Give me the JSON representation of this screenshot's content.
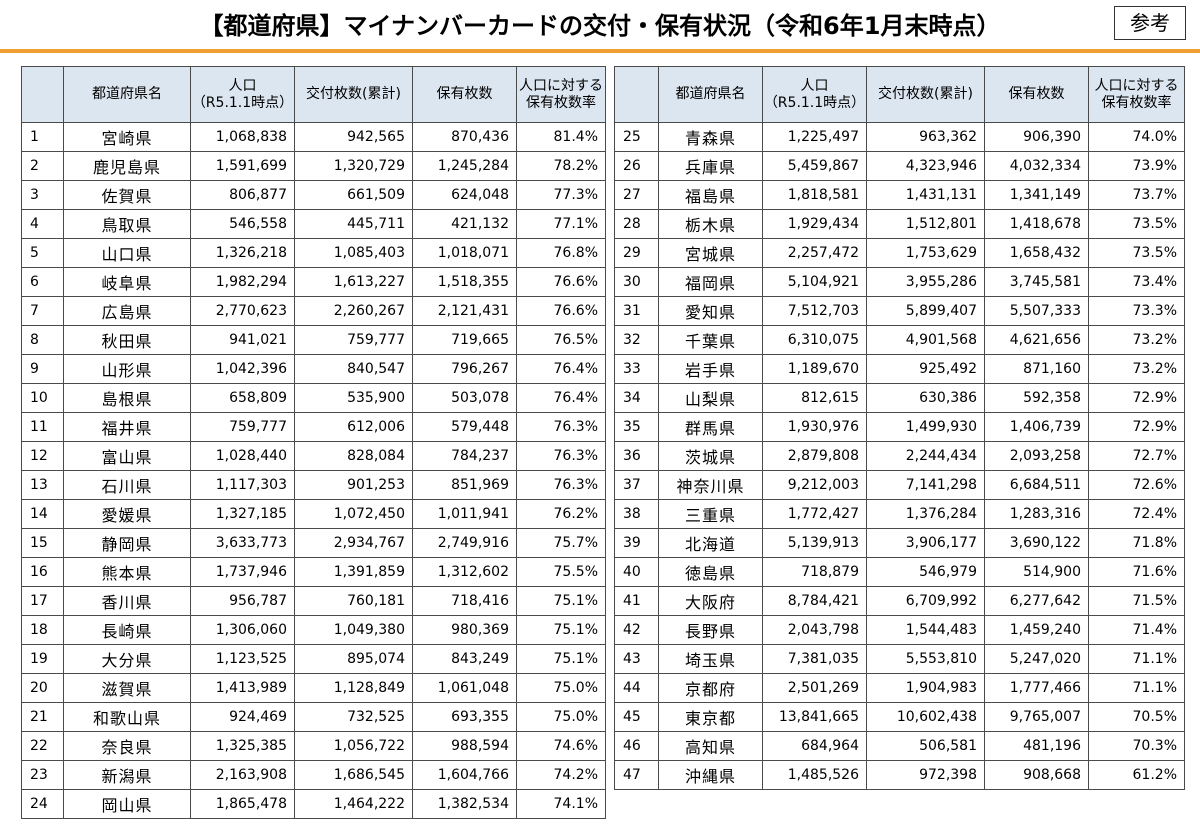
{
  "title": "【都道府県】マイナンバーカードの交付・保有状況（令和6年1月末時点）",
  "reference_badge": "参考",
  "headers": {
    "no": "",
    "prefecture": "都道府県名",
    "population_line1": "人口",
    "population_line2": "（R5.1.1時点）",
    "issued": "交付枚数(累計)",
    "held": "保有枚数",
    "rate_line1": "人口に対する",
    "rate_line2": "保有枚数率"
  },
  "left_rows": [
    {
      "no": "1",
      "pref": "宮崎県",
      "population": "1,068,838",
      "issued": "942,565",
      "held": "870,436",
      "rate": "81.4%"
    },
    {
      "no": "2",
      "pref": "鹿児島県",
      "population": "1,591,699",
      "issued": "1,320,729",
      "held": "1,245,284",
      "rate": "78.2%"
    },
    {
      "no": "3",
      "pref": "佐賀県",
      "population": "806,877",
      "issued": "661,509",
      "held": "624,048",
      "rate": "77.3%"
    },
    {
      "no": "4",
      "pref": "鳥取県",
      "population": "546,558",
      "issued": "445,711",
      "held": "421,132",
      "rate": "77.1%"
    },
    {
      "no": "5",
      "pref": "山口県",
      "population": "1,326,218",
      "issued": "1,085,403",
      "held": "1,018,071",
      "rate": "76.8%"
    },
    {
      "no": "6",
      "pref": "岐阜県",
      "population": "1,982,294",
      "issued": "1,613,227",
      "held": "1,518,355",
      "rate": "76.6%"
    },
    {
      "no": "7",
      "pref": "広島県",
      "population": "2,770,623",
      "issued": "2,260,267",
      "held": "2,121,431",
      "rate": "76.6%"
    },
    {
      "no": "8",
      "pref": "秋田県",
      "population": "941,021",
      "issued": "759,777",
      "held": "719,665",
      "rate": "76.5%"
    },
    {
      "no": "9",
      "pref": "山形県",
      "population": "1,042,396",
      "issued": "840,547",
      "held": "796,267",
      "rate": "76.4%"
    },
    {
      "no": "10",
      "pref": "島根県",
      "population": "658,809",
      "issued": "535,900",
      "held": "503,078",
      "rate": "76.4%"
    },
    {
      "no": "11",
      "pref": "福井県",
      "population": "759,777",
      "issued": "612,006",
      "held": "579,448",
      "rate": "76.3%"
    },
    {
      "no": "12",
      "pref": "富山県",
      "population": "1,028,440",
      "issued": "828,084",
      "held": "784,237",
      "rate": "76.3%"
    },
    {
      "no": "13",
      "pref": "石川県",
      "population": "1,117,303",
      "issued": "901,253",
      "held": "851,969",
      "rate": "76.3%"
    },
    {
      "no": "14",
      "pref": "愛媛県",
      "population": "1,327,185",
      "issued": "1,072,450",
      "held": "1,011,941",
      "rate": "76.2%"
    },
    {
      "no": "15",
      "pref": "静岡県",
      "population": "3,633,773",
      "issued": "2,934,767",
      "held": "2,749,916",
      "rate": "75.7%"
    },
    {
      "no": "16",
      "pref": "熊本県",
      "population": "1,737,946",
      "issued": "1,391,859",
      "held": "1,312,602",
      "rate": "75.5%"
    },
    {
      "no": "17",
      "pref": "香川県",
      "population": "956,787",
      "issued": "760,181",
      "held": "718,416",
      "rate": "75.1%"
    },
    {
      "no": "18",
      "pref": "長崎県",
      "population": "1,306,060",
      "issued": "1,049,380",
      "held": "980,369",
      "rate": "75.1%"
    },
    {
      "no": "19",
      "pref": "大分県",
      "population": "1,123,525",
      "issued": "895,074",
      "held": "843,249",
      "rate": "75.1%"
    },
    {
      "no": "20",
      "pref": "滋賀県",
      "population": "1,413,989",
      "issued": "1,128,849",
      "held": "1,061,048",
      "rate": "75.0%"
    },
    {
      "no": "21",
      "pref": "和歌山県",
      "population": "924,469",
      "issued": "732,525",
      "held": "693,355",
      "rate": "75.0%"
    },
    {
      "no": "22",
      "pref": "奈良県",
      "population": "1,325,385",
      "issued": "1,056,722",
      "held": "988,594",
      "rate": "74.6%"
    },
    {
      "no": "23",
      "pref": "新潟県",
      "population": "2,163,908",
      "issued": "1,686,545",
      "held": "1,604,766",
      "rate": "74.2%"
    },
    {
      "no": "24",
      "pref": "岡山県",
      "population": "1,865,478",
      "issued": "1,464,222",
      "held": "1,382,534",
      "rate": "74.1%"
    }
  ],
  "right_rows": [
    {
      "no": "25",
      "pref": "青森県",
      "population": "1,225,497",
      "issued": "963,362",
      "held": "906,390",
      "rate": "74.0%"
    },
    {
      "no": "26",
      "pref": "兵庫県",
      "population": "5,459,867",
      "issued": "4,323,946",
      "held": "4,032,334",
      "rate": "73.9%"
    },
    {
      "no": "27",
      "pref": "福島県",
      "population": "1,818,581",
      "issued": "1,431,131",
      "held": "1,341,149",
      "rate": "73.7%"
    },
    {
      "no": "28",
      "pref": "栃木県",
      "population": "1,929,434",
      "issued": "1,512,801",
      "held": "1,418,678",
      "rate": "73.5%"
    },
    {
      "no": "29",
      "pref": "宮城県",
      "population": "2,257,472",
      "issued": "1,753,629",
      "held": "1,658,432",
      "rate": "73.5%"
    },
    {
      "no": "30",
      "pref": "福岡県",
      "population": "5,104,921",
      "issued": "3,955,286",
      "held": "3,745,581",
      "rate": "73.4%"
    },
    {
      "no": "31",
      "pref": "愛知県",
      "population": "7,512,703",
      "issued": "5,899,407",
      "held": "5,507,333",
      "rate": "73.3%"
    },
    {
      "no": "32",
      "pref": "千葉県",
      "population": "6,310,075",
      "issued": "4,901,568",
      "held": "4,621,656",
      "rate": "73.2%"
    },
    {
      "no": "33",
      "pref": "岩手県",
      "population": "1,189,670",
      "issued": "925,492",
      "held": "871,160",
      "rate": "73.2%"
    },
    {
      "no": "34",
      "pref": "山梨県",
      "population": "812,615",
      "issued": "630,386",
      "held": "592,358",
      "rate": "72.9%"
    },
    {
      "no": "35",
      "pref": "群馬県",
      "population": "1,930,976",
      "issued": "1,499,930",
      "held": "1,406,739",
      "rate": "72.9%"
    },
    {
      "no": "36",
      "pref": "茨城県",
      "population": "2,879,808",
      "issued": "2,244,434",
      "held": "2,093,258",
      "rate": "72.7%"
    },
    {
      "no": "37",
      "pref": "神奈川県",
      "population": "9,212,003",
      "issued": "7,141,298",
      "held": "6,684,511",
      "rate": "72.6%"
    },
    {
      "no": "38",
      "pref": "三重県",
      "population": "1,772,427",
      "issued": "1,376,284",
      "held": "1,283,316",
      "rate": "72.4%"
    },
    {
      "no": "39",
      "pref": "北海道",
      "population": "5,139,913",
      "issued": "3,906,177",
      "held": "3,690,122",
      "rate": "71.8%"
    },
    {
      "no": "40",
      "pref": "徳島県",
      "population": "718,879",
      "issued": "546,979",
      "held": "514,900",
      "rate": "71.6%"
    },
    {
      "no": "41",
      "pref": "大阪府",
      "population": "8,784,421",
      "issued": "6,709,992",
      "held": "6,277,642",
      "rate": "71.5%"
    },
    {
      "no": "42",
      "pref": "長野県",
      "population": "2,043,798",
      "issued": "1,544,483",
      "held": "1,459,240",
      "rate": "71.4%"
    },
    {
      "no": "43",
      "pref": "埼玉県",
      "population": "7,381,035",
      "issued": "5,553,810",
      "held": "5,247,020",
      "rate": "71.1%"
    },
    {
      "no": "44",
      "pref": "京都府",
      "population": "2,501,269",
      "issued": "1,904,983",
      "held": "1,777,466",
      "rate": "71.1%"
    },
    {
      "no": "45",
      "pref": "東京都",
      "population": "13,841,665",
      "issued": "10,602,438",
      "held": "9,765,007",
      "rate": "70.5%"
    },
    {
      "no": "46",
      "pref": "高知県",
      "population": "684,964",
      "issued": "506,581",
      "held": "481,196",
      "rate": "70.3%"
    },
    {
      "no": "47",
      "pref": "沖縄県",
      "population": "1,485,526",
      "issued": "972,398",
      "held": "908,668",
      "rate": "61.2%"
    }
  ]
}
